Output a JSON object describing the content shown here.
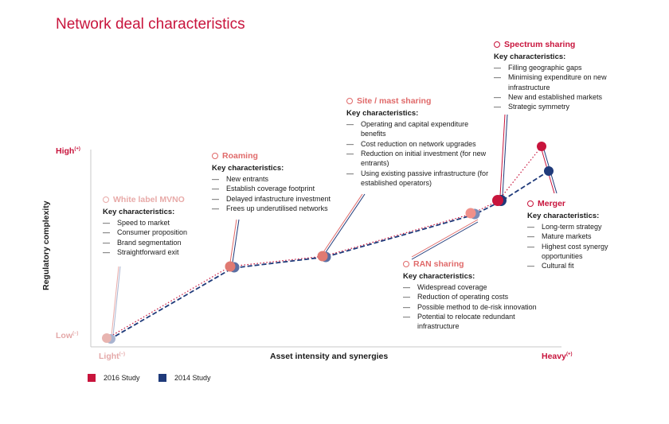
{
  "title": "Network deal characteristics",
  "axes": {
    "y_label": "Regulatory complexity",
    "x_label": "Asset intensity and synergies",
    "high": "High",
    "high_sup": "(+)",
    "low": "Low",
    "low_sup": "(–)",
    "light": "Light",
    "light_sup": "(–)",
    "heavy": "Heavy",
    "heavy_sup": "(+)"
  },
  "key_label": "Key characteristics:",
  "stages": {
    "mvno": {
      "name": "White label MVNO",
      "items": [
        "Speed to market",
        "Consumer proposition",
        "Brand segmentation",
        "Straightforward exit"
      ]
    },
    "roaming": {
      "name": "Roaming",
      "items": [
        "New entrants",
        "Establish coverage footprint",
        "Delayed infastructure investment",
        "Frees up underutilised networks"
      ]
    },
    "site": {
      "name": "Site / mast sharing",
      "items": [
        "Operating and capital expenditure benefits",
        "Cost reduction on network upgrades",
        "Reduction on initial investment (for new entrants)",
        "Using existing passive infrastructure (for established operators)"
      ]
    },
    "ran": {
      "name": "RAN sharing",
      "items": [
        "Widespread coverage",
        "Reduction of operating costs",
        "Possible method to de-risk innovation",
        "Potential to relocate redundant infrastructure"
      ]
    },
    "spectrum": {
      "name": "Spectrum sharing",
      "items": [
        "Filling geographic gaps",
        "Minimising expenditure on new infrastructure",
        "New and established markets",
        "Strategic symmetry"
      ]
    },
    "merger": {
      "name": "Merger",
      "items": [
        "Long-term strategy",
        "Mature markets",
        "Highest cost synergy opportunities",
        "Cultural fit"
      ]
    }
  },
  "legend": [
    {
      "label": "2016 Study",
      "color": "#c8143c"
    },
    {
      "label": "2014 Study",
      "color": "#1f3a7a"
    }
  ],
  "colors": {
    "accent": "#c8143c",
    "navy": "#1f3a7a",
    "light_red": "#e8aaa8",
    "mid_red": "#e06a6a"
  }
}
